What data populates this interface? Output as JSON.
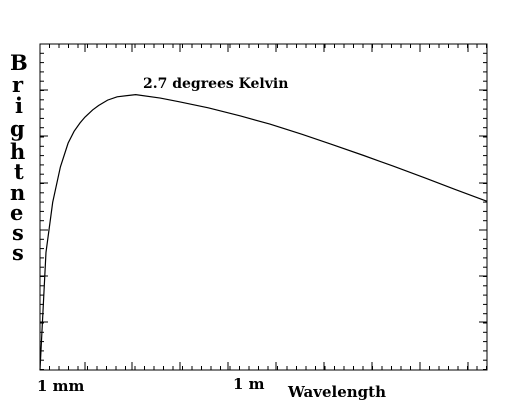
{
  "chart_data": {
    "type": "line",
    "title": "2.7 degrees Kelvin",
    "xlabel": "Wavelength",
    "ylabel": "Brightness",
    "x_scale": "log",
    "y_scale": "log",
    "x_tick_labels": [
      {
        "label": "1 mm",
        "value": 0.001
      },
      {
        "label": "1 m",
        "value": 1
      }
    ],
    "xlim_m": [
      0.00056,
      10000
    ],
    "ylim_relative": [
      1e-10,
      1
    ],
    "grid": false,
    "series": [
      {
        "x_m": [
          0.00056,
          0.0007,
          0.0009,
          0.0012,
          0.0016,
          0.002,
          0.0025,
          0.003,
          0.004,
          0.005,
          0.007,
          0.01,
          0.02,
          0.05,
          0.1,
          0.3,
          1,
          3,
          10,
          30,
          100,
          300,
          1000,
          3000,
          10000
        ],
        "y_relative": [
          1e-10,
          4e-07,
          1.4e-05,
          0.00017,
          0.00091,
          0.0021,
          0.0038,
          0.0057,
          0.0095,
          0.013,
          0.019,
          0.024,
          0.028,
          0.022,
          0.017,
          0.011,
          0.0062,
          0.0035,
          0.0017,
          0.00084,
          0.00038,
          0.00018,
          7.7e-05,
          3.5e-05,
          1.5e-05
        ]
      }
    ]
  },
  "chart_text": {
    "title": "2.7 degrees Kelvin",
    "xlabel": "Wavelength",
    "ylabel_letters": [
      "B",
      "r",
      "i",
      "g",
      "h",
      "t",
      "n",
      "e",
      "s",
      "s"
    ],
    "x_tick_1": "1 mm",
    "x_tick_2": "1 m"
  }
}
